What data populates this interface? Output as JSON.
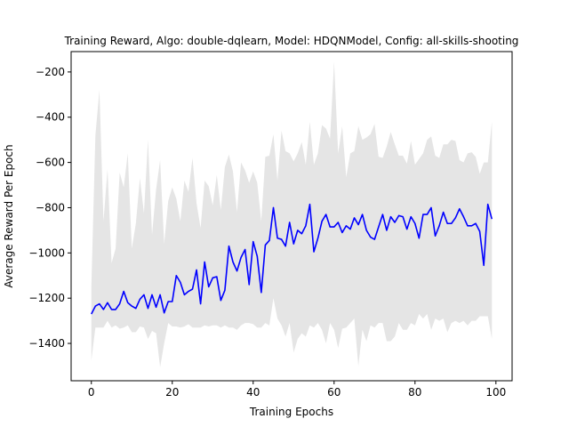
{
  "chart_data": {
    "type": "line",
    "title": "Training Reward, Algo: double-dqlearn, Model: HDQNModel, Config: all-skills-shooting",
    "xlabel": "Training Epochs",
    "ylabel": "Average Reward Per Epoch",
    "xlim": [
      -5,
      104
    ],
    "ylim": [
      -1565,
      -110
    ],
    "xticks": [
      0,
      20,
      40,
      60,
      80,
      100
    ],
    "yticks": [
      -1400,
      -1200,
      -1000,
      -800,
      -600,
      -400,
      -200
    ],
    "grid": false,
    "legend": "none",
    "colors": {
      "line": "#0000ff",
      "band": "#e5e5e5"
    },
    "series": [
      {
        "x": [
          0,
          1,
          2,
          3,
          4,
          5,
          6,
          7,
          8,
          9,
          10,
          11,
          12,
          13,
          14,
          15,
          16,
          17,
          18,
          19,
          20,
          21,
          22,
          23,
          24,
          25,
          26,
          27,
          28,
          29,
          30,
          31,
          32,
          33,
          34,
          35,
          36,
          37,
          38,
          39,
          40,
          41,
          42,
          43,
          44,
          45,
          46,
          47,
          48,
          49,
          50,
          51,
          52,
          53,
          54,
          55,
          56,
          57,
          58,
          59,
          60,
          61,
          62,
          63,
          64,
          65,
          66,
          67,
          68,
          69,
          70,
          71,
          72,
          73,
          74,
          75,
          76,
          77,
          78,
          79,
          80,
          81,
          82,
          83,
          84,
          85,
          86,
          87,
          88,
          89,
          90,
          91,
          92,
          93,
          94,
          95,
          96,
          97,
          98,
          99
        ],
        "values": [
          -1270,
          -1235,
          -1225,
          -1250,
          -1220,
          -1250,
          -1250,
          -1225,
          -1170,
          -1220,
          -1235,
          -1245,
          -1205,
          -1185,
          -1245,
          -1185,
          -1240,
          -1185,
          -1265,
          -1215,
          -1215,
          -1100,
          -1130,
          -1185,
          -1170,
          -1160,
          -1075,
          -1225,
          -1040,
          -1150,
          -1110,
          -1105,
          -1210,
          -1165,
          -970,
          -1040,
          -1080,
          -1020,
          -985,
          -1140,
          -950,
          -1015,
          -1175,
          -965,
          -945,
          -800,
          -935,
          -940,
          -970,
          -865,
          -960,
          -900,
          -915,
          -880,
          -785,
          -995,
          -935,
          -860,
          -830,
          -885,
          -885,
          -865,
          -910,
          -880,
          -895,
          -845,
          -875,
          -830,
          -900,
          -930,
          -940,
          -885,
          -830,
          -900,
          -840,
          -865,
          -835,
          -840,
          -895,
          -840,
          -870,
          -935,
          -830,
          -830,
          -800,
          -925,
          -880,
          -820,
          -870,
          -870,
          -845,
          -805,
          -840,
          -880,
          -880,
          -870,
          -905,
          -1055,
          -785,
          -850
        ],
        "upper": [
          -1150,
          -480,
          -280,
          -860,
          -630,
          -1045,
          -980,
          -645,
          -710,
          -560,
          -980,
          -870,
          -670,
          -825,
          -500,
          -920,
          -720,
          -590,
          -960,
          -770,
          -710,
          -760,
          -860,
          -680,
          -730,
          -580,
          -780,
          -890,
          -680,
          -705,
          -790,
          -655,
          -810,
          -620,
          -565,
          -640,
          -820,
          -600,
          -635,
          -690,
          -640,
          -690,
          -860,
          -575,
          -570,
          -475,
          -680,
          -460,
          -550,
          -560,
          -595,
          -560,
          -510,
          -610,
          -420,
          -610,
          -560,
          -435,
          -450,
          -495,
          -155,
          -560,
          -440,
          -665,
          -560,
          -550,
          -440,
          -500,
          -490,
          -475,
          -430,
          -575,
          -580,
          -530,
          -465,
          -520,
          -570,
          -570,
          -605,
          -505,
          -610,
          -585,
          -560,
          -500,
          -485,
          -570,
          -580,
          -520,
          -520,
          -500,
          -505,
          -590,
          -600,
          -560,
          -555,
          -575,
          -650,
          -600,
          -600,
          -420
        ],
        "lower": [
          -1475,
          -1330,
          -1330,
          -1330,
          -1300,
          -1330,
          -1320,
          -1335,
          -1330,
          -1320,
          -1350,
          -1350,
          -1325,
          -1330,
          -1380,
          -1345,
          -1355,
          -1505,
          -1400,
          -1310,
          -1325,
          -1325,
          -1330,
          -1325,
          -1315,
          -1330,
          -1330,
          -1330,
          -1320,
          -1325,
          -1320,
          -1320,
          -1330,
          -1320,
          -1330,
          -1330,
          -1340,
          -1320,
          -1310,
          -1310,
          -1315,
          -1330,
          -1330,
          -1310,
          -1320,
          -1200,
          -1290,
          -1320,
          -1370,
          -1310,
          -1440,
          -1380,
          -1355,
          -1370,
          -1320,
          -1330,
          -1310,
          -1340,
          -1400,
          -1310,
          -1340,
          -1420,
          -1335,
          -1330,
          -1310,
          -1290,
          -1500,
          -1340,
          -1390,
          -1320,
          -1330,
          -1310,
          -1310,
          -1390,
          -1390,
          -1370,
          -1310,
          -1340,
          -1340,
          -1310,
          -1320,
          -1270,
          -1290,
          -1270,
          -1340,
          -1290,
          -1300,
          -1290,
          -1350,
          -1310,
          -1300,
          -1310,
          -1300,
          -1320,
          -1300,
          -1300,
          -1280,
          -1280,
          -1280,
          -1380
        ]
      }
    ]
  }
}
